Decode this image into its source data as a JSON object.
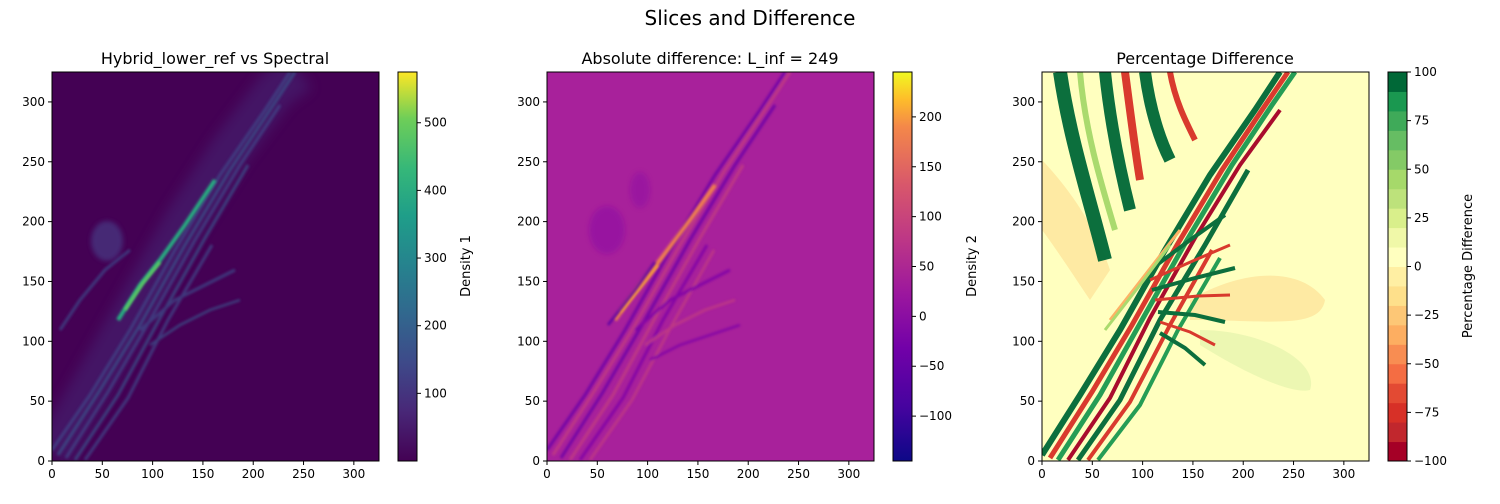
{
  "figure": {
    "title": "Slices and Difference"
  },
  "chart_data": [
    {
      "type": "heatmap",
      "title": "Hybrid_lower_ref vs Spectral",
      "xlim": [
        0,
        325
      ],
      "ylim": [
        0,
        325
      ],
      "xticks": [
        0,
        50,
        100,
        150,
        200,
        250,
        300
      ],
      "yticks": [
        0,
        50,
        100,
        150,
        200,
        250,
        300
      ],
      "colormap": "viridis",
      "colorbar": {
        "label": "Density 1",
        "range": [
          0,
          575
        ],
        "ticks": [
          100,
          200,
          300,
          400,
          500
        ]
      },
      "features": [
        {
          "kind": "fringe-band",
          "path": [
            [
              0,
              0
            ],
            [
              85,
              140
            ],
            [
              170,
              250
            ],
            [
              250,
              325
            ]
          ],
          "width": 45,
          "peak": 120
        },
        {
          "kind": "ridge",
          "path": [
            [
              60,
              110
            ],
            [
              100,
              165
            ],
            [
              165,
              240
            ]
          ],
          "peak": 520
        },
        {
          "kind": "blob",
          "center": [
            50,
            185
          ],
          "radius": 22,
          "peak": 60
        },
        {
          "kind": "lobe",
          "path": [
            [
              120,
              175
            ],
            [
              200,
              115
            ]
          ],
          "peak": 70
        }
      ]
    },
    {
      "type": "heatmap",
      "title": "Absolute difference: L_inf = 249",
      "xlim": [
        0,
        325
      ],
      "ylim": [
        0,
        325
      ],
      "xticks": [
        0,
        50,
        100,
        150,
        200,
        250,
        300
      ],
      "yticks": [
        0,
        50,
        100,
        150,
        200,
        250,
        300
      ],
      "colormap": "plasma",
      "colorbar": {
        "label": "Density 2",
        "range": [
          -145,
          245
        ],
        "ticks": [
          -100,
          -50,
          0,
          50,
          100,
          150,
          200
        ]
      },
      "features": [
        {
          "kind": "oscillating-band",
          "path": [
            [
              0,
              0
            ],
            [
              85,
              140
            ],
            [
              170,
              250
            ],
            [
              250,
              325
            ]
          ],
          "width": 50,
          "amplitude": 90
        },
        {
          "kind": "ridge",
          "path": [
            [
              70,
              120
            ],
            [
              110,
              170
            ],
            [
              165,
              230
            ]
          ],
          "peak": 240
        },
        {
          "kind": "blob",
          "center": [
            60,
            195
          ],
          "radius": 25,
          "peak": -40
        }
      ]
    },
    {
      "type": "heatmap",
      "title": "Percentage Difference",
      "xlim": [
        0,
        325
      ],
      "ylim": [
        0,
        325
      ],
      "xticks": [
        0,
        50,
        100,
        150,
        200,
        250,
        300
      ],
      "yticks": [
        0,
        50,
        100,
        150,
        200,
        250,
        300
      ],
      "colormap": "RdYlGn",
      "levels": 20,
      "colorbar": {
        "label": "Percentage Difference",
        "range": [
          -100,
          100
        ],
        "ticks": [
          -100,
          -75,
          -50,
          -25,
          0,
          25,
          50,
          75,
          100
        ]
      },
      "features": [
        {
          "kind": "saturated-fringes",
          "path": [
            [
              0,
              0
            ],
            [
              85,
              140
            ],
            [
              170,
              250
            ],
            [
              250,
              325
            ]
          ],
          "width": 70
        },
        {
          "kind": "fan",
          "origin": [
            110,
            160
          ],
          "toward": [
            [
              170,
              200
            ],
            [
              175,
              110
            ]
          ]
        },
        {
          "kind": "lobe",
          "path": [
            [
              150,
              150
            ],
            [
              265,
              130
            ]
          ],
          "value": -20
        },
        {
          "kind": "lobe",
          "path": [
            [
              200,
              100
            ],
            [
              280,
              70
            ]
          ],
          "value": 15
        },
        {
          "kind": "lobe",
          "path": [
            [
              0,
              250
            ],
            [
              60,
              170
            ]
          ],
          "value": -15
        }
      ]
    }
  ]
}
